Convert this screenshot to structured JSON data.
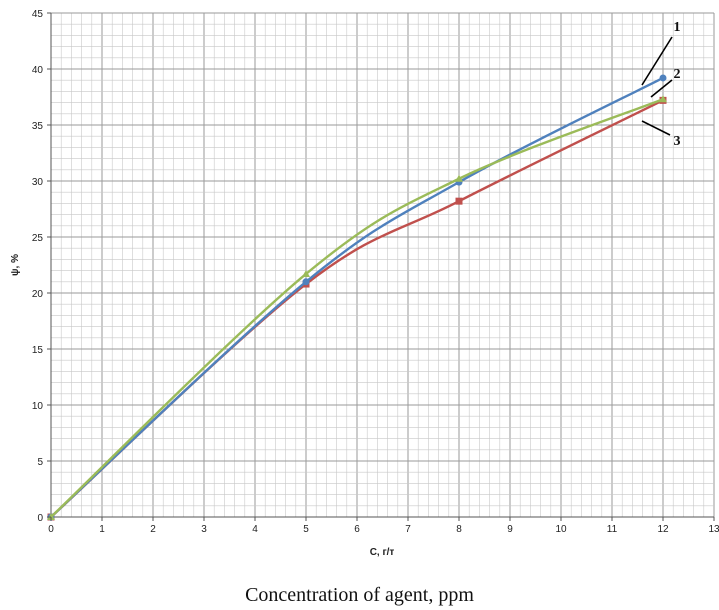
{
  "caption": "Concentration of agent, ppm",
  "chart_data": {
    "type": "line",
    "xlabel": "C, г/т",
    "ylabel": "ψ, %",
    "xlim": [
      0,
      13
    ],
    "ylim": [
      0,
      45
    ],
    "x_ticks": [
      "0",
      "1",
      "2",
      "3",
      "4",
      "5",
      "6",
      "7",
      "8",
      "9",
      "10",
      "11",
      "12",
      "13"
    ],
    "y_ticks": [
      "0",
      "5",
      "10",
      "15",
      "20",
      "25",
      "30",
      "35",
      "40",
      "45"
    ],
    "grid": true,
    "minor_grid": true,
    "series": [
      {
        "color": "#4f81bd",
        "marker": "circle",
        "x": [
          0,
          5,
          8,
          12
        ],
        "values": [
          0,
          21.0,
          29.9,
          39.2
        ],
        "callout": "1"
      },
      {
        "color": "#9bbb59",
        "marker": "triangle",
        "x": [
          0,
          5,
          8,
          12
        ],
        "values": [
          0,
          21.7,
          30.2,
          37.3
        ],
        "callout": "2"
      },
      {
        "color": "#c0504d",
        "marker": "square",
        "x": [
          0,
          5,
          8,
          12
        ],
        "values": [
          0,
          20.8,
          28.2,
          37.2
        ],
        "callout": "3"
      }
    ]
  }
}
